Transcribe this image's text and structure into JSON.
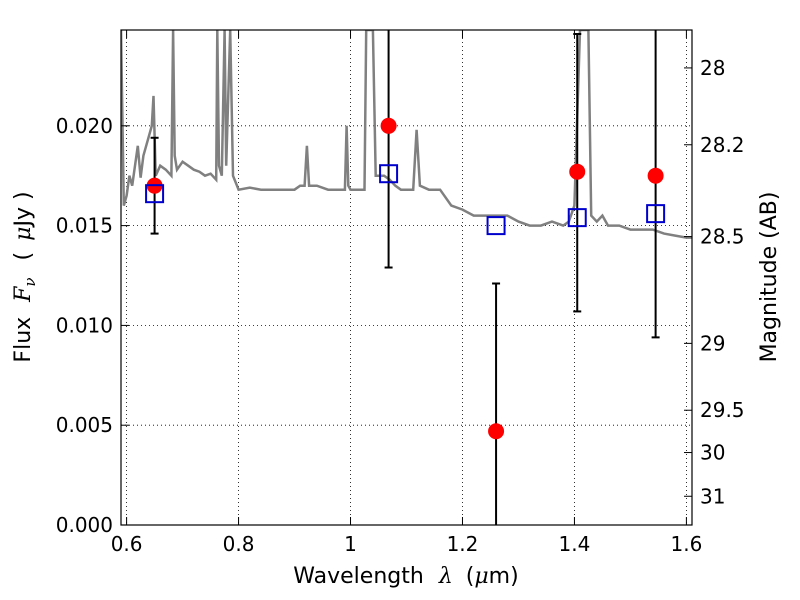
{
  "chart_data": {
    "type": "scatter",
    "xlabel": "Wavelength",
    "xlabel_symbol": "λ",
    "xlabel_unit_open": "(",
    "xlabel_unit_mu": "μ",
    "xlabel_unit_close": "m)",
    "ylabel": "Flux",
    "ylabel_symbol": "F",
    "ylabel_sub": "ν",
    "ylabel_unit_open": "(",
    "ylabel_unit_mu": "μ",
    "ylabel_unit_close": "Jy )",
    "y2label": "Magnitude (AB)",
    "xlim": [
      0.59,
      1.61
    ],
    "ylim": [
      0.0,
      0.0248
    ],
    "grid": true,
    "x_ticks": [
      0.6,
      0.8,
      1.0,
      1.2,
      1.4,
      1.6
    ],
    "x_tick_labels": [
      "0.6",
      "0.8",
      "1",
      "1.2",
      "1.4",
      "1.6"
    ],
    "y_ticks": [
      0.0,
      0.005,
      0.01,
      0.015,
      0.02
    ],
    "y_tick_labels": [
      "0.000",
      "0.005",
      "0.010",
      "0.015",
      "0.020"
    ],
    "y2_ticks": [
      {
        "label": "28",
        "flux": 0.0229
      },
      {
        "label": "28.2",
        "flux": 0.01905
      },
      {
        "label": "28.5",
        "flux": 0.01445
      },
      {
        "label": "29",
        "flux": 0.0091
      },
      {
        "label": "29.5",
        "flux": 0.00575
      },
      {
        "label": "30",
        "flux": 0.00363
      },
      {
        "label": "31",
        "flux": 0.00144
      }
    ],
    "colors": {
      "observed": "#ff0000",
      "model": "#0000cc",
      "spectrum": "#808080",
      "errorbar": "#000000"
    },
    "observed": [
      {
        "x": 0.65,
        "y": 0.017,
        "yerr_low": 0.0146,
        "yerr_high": 0.0194
      },
      {
        "x": 1.068,
        "y": 0.02,
        "yerr_low": 0.0129,
        "yerr_high": 0.026
      },
      {
        "x": 1.26,
        "y": 0.0047,
        "yerr_low": 0.0,
        "yerr_high": 0.0121
      },
      {
        "x": 1.405,
        "y": 0.0177,
        "yerr_low": 0.0107,
        "yerr_high": 0.0246
      },
      {
        "x": 1.545,
        "y": 0.0175,
        "yerr_low": 0.0094,
        "yerr_high": 0.026
      }
    ],
    "model": [
      {
        "x": 0.65,
        "y": 0.0166
      },
      {
        "x": 1.068,
        "y": 0.0176
      },
      {
        "x": 1.26,
        "y": 0.015
      },
      {
        "x": 1.405,
        "y": 0.0154
      },
      {
        "x": 1.545,
        "y": 0.0156
      }
    ],
    "spectrum": [
      [
        0.59,
        0.0248
      ],
      [
        0.595,
        0.016
      ],
      [
        0.6,
        0.0165
      ],
      [
        0.605,
        0.0175
      ],
      [
        0.61,
        0.017
      ],
      [
        0.62,
        0.019
      ],
      [
        0.625,
        0.0174
      ],
      [
        0.63,
        0.0185
      ],
      [
        0.64,
        0.0195
      ],
      [
        0.645,
        0.02
      ],
      [
        0.648,
        0.0215
      ],
      [
        0.652,
        0.0175
      ],
      [
        0.66,
        0.018
      ],
      [
        0.67,
        0.0178
      ],
      [
        0.68,
        0.0175
      ],
      [
        0.683,
        0.0248
      ],
      [
        0.686,
        0.0185
      ],
      [
        0.69,
        0.0178
      ],
      [
        0.7,
        0.0182
      ],
      [
        0.71,
        0.018
      ],
      [
        0.72,
        0.0178
      ],
      [
        0.73,
        0.0177
      ],
      [
        0.74,
        0.0175
      ],
      [
        0.75,
        0.0176
      ],
      [
        0.76,
        0.0173
      ],
      [
        0.762,
        0.0248
      ],
      [
        0.765,
        0.018
      ],
      [
        0.77,
        0.0175
      ],
      [
        0.775,
        0.0248
      ],
      [
        0.778,
        0.018
      ],
      [
        0.785,
        0.0248
      ],
      [
        0.79,
        0.0175
      ],
      [
        0.8,
        0.0168
      ],
      [
        0.82,
        0.0169
      ],
      [
        0.84,
        0.0168
      ],
      [
        0.86,
        0.0168
      ],
      [
        0.88,
        0.0168
      ],
      [
        0.9,
        0.0168
      ],
      [
        0.91,
        0.017
      ],
      [
        0.918,
        0.017
      ],
      [
        0.922,
        0.019
      ],
      [
        0.926,
        0.017
      ],
      [
        0.94,
        0.017
      ],
      [
        0.96,
        0.0168
      ],
      [
        0.98,
        0.0168
      ],
      [
        0.99,
        0.0168
      ],
      [
        0.993,
        0.02
      ],
      [
        0.996,
        0.017
      ],
      [
        1.0,
        0.0168
      ],
      [
        1.02,
        0.0168
      ],
      [
        1.025,
        0.0168
      ],
      [
        1.028,
        0.0248
      ],
      [
        1.04,
        0.0248
      ],
      [
        1.045,
        0.0175
      ],
      [
        1.06,
        0.0175
      ],
      [
        1.07,
        0.0173
      ],
      [
        1.08,
        0.017
      ],
      [
        1.09,
        0.0168
      ],
      [
        1.1,
        0.0168
      ],
      [
        1.112,
        0.0168
      ],
      [
        1.118,
        0.0198
      ],
      [
        1.124,
        0.017
      ],
      [
        1.14,
        0.0168
      ],
      [
        1.16,
        0.0168
      ],
      [
        1.18,
        0.016
      ],
      [
        1.2,
        0.0158
      ],
      [
        1.22,
        0.0155
      ],
      [
        1.24,
        0.0155
      ],
      [
        1.26,
        0.0155
      ],
      [
        1.28,
        0.0155
      ],
      [
        1.3,
        0.0152
      ],
      [
        1.32,
        0.015
      ],
      [
        1.34,
        0.015
      ],
      [
        1.36,
        0.0152
      ],
      [
        1.38,
        0.015
      ],
      [
        1.39,
        0.0152
      ],
      [
        1.4,
        0.016
      ],
      [
        1.41,
        0.0248
      ],
      [
        1.425,
        0.0248
      ],
      [
        1.43,
        0.0155
      ],
      [
        1.44,
        0.0152
      ],
      [
        1.45,
        0.0155
      ],
      [
        1.46,
        0.015
      ],
      [
        1.48,
        0.015
      ],
      [
        1.5,
        0.0148
      ],
      [
        1.52,
        0.0148
      ],
      [
        1.54,
        0.0148
      ],
      [
        1.56,
        0.0146
      ],
      [
        1.58,
        0.0145
      ],
      [
        1.6,
        0.0144
      ],
      [
        1.61,
        0.0144
      ]
    ]
  }
}
